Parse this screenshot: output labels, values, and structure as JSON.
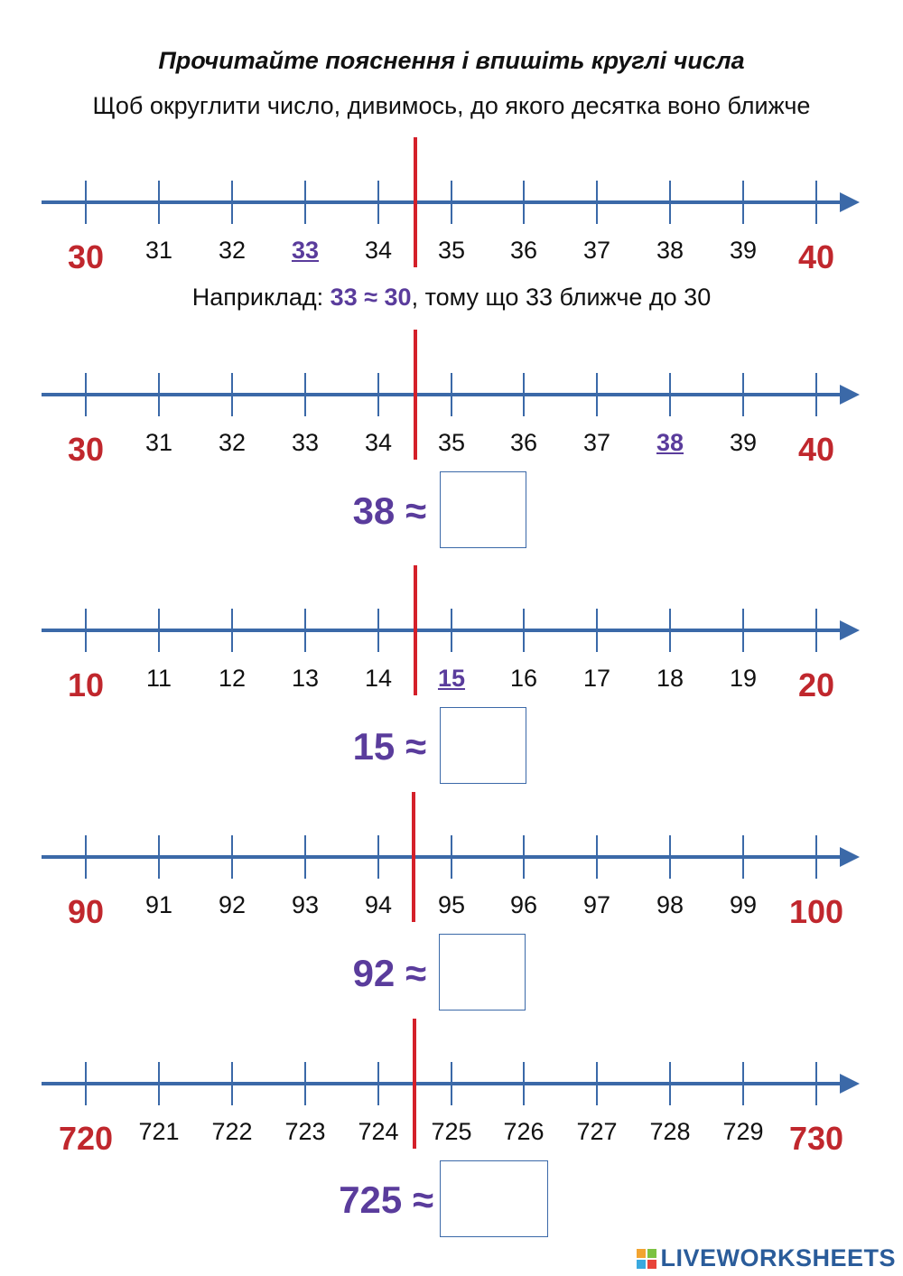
{
  "title": "Прочитайте пояснення і впишіть круглі числа",
  "subtitle": "Щоб округлити число, дивимось, до якого десятка воно ближче",
  "example": {
    "prefix": "Наприклад: ",
    "expression": "33 ≈ 30",
    "suffix": ", тому що 33 ближче до 30"
  },
  "lines": [
    {
      "labels": [
        "30",
        "31",
        "32",
        "33",
        "34",
        "35",
        "36",
        "37",
        "38",
        "39",
        "40"
      ],
      "highlight": 3
    },
    {
      "labels": [
        "30",
        "31",
        "32",
        "33",
        "34",
        "35",
        "36",
        "37",
        "38",
        "39",
        "40"
      ],
      "highlight": 8
    },
    {
      "labels": [
        "10",
        "11",
        "12",
        "13",
        "14",
        "15",
        "16",
        "17",
        "18",
        "19",
        "20"
      ],
      "highlight": 5
    },
    {
      "labels": [
        "90",
        "91",
        "92",
        "93",
        "94",
        "95",
        "96",
        "97",
        "98",
        "99",
        "100"
      ],
      "highlight": -1
    },
    {
      "labels": [
        "720",
        "721",
        "722",
        "723",
        "724",
        "725",
        "726",
        "727",
        "728",
        "729",
        "730"
      ],
      "highlight": -1
    }
  ],
  "questions": [
    {
      "text": "38 ≈",
      "answer": ""
    },
    {
      "text": "15 ≈",
      "answer": ""
    },
    {
      "text": "92 ≈",
      "answer": ""
    },
    {
      "text": "725 ≈",
      "answer": ""
    }
  ],
  "logo": "LIVEWORKSHEETS",
  "colors": {
    "axis": "#3b69a8",
    "midline": "#d4202a",
    "endpoint": "#c0272d",
    "highlight": "#5a3c9c"
  }
}
